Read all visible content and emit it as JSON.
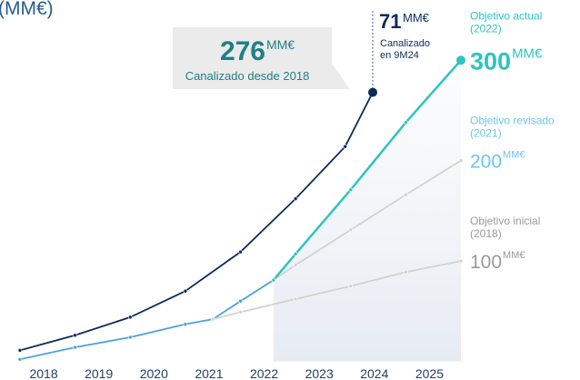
{
  "chart_data": {
    "type": "line",
    "title": "(MM€)",
    "categories": [
      "2018",
      "2019",
      "2020",
      "2021",
      "2022",
      "2023",
      "2024",
      "2025"
    ],
    "xlim": [
      2018,
      2026
    ],
    "ylim": [
      0,
      360
    ],
    "series": [
      {
        "color": "#0b2d5b",
        "x": [
          2018,
          2019,
          2020,
          2021,
          2022,
          2023,
          2023.9,
          2024.4
        ],
        "values": [
          11,
          26,
          44,
          70,
          109,
          162,
          214,
          268
        ]
      },
      {
        "color": "#4aa3df",
        "x": [
          2018,
          2019,
          2020,
          2021,
          2021.5,
          2022,
          2022.6
        ],
        "values": [
          2,
          14,
          24,
          37,
          42,
          60,
          81
        ]
      },
      {
        "color": "#d2d2d2",
        "x": [
          2021.5,
          2022,
          2023,
          2024,
          2025,
          2026
        ],
        "values": [
          42,
          49,
          62,
          75,
          89,
          100
        ]
      },
      {
        "color": "#d2d2d2",
        "x": [
          2022.6,
          2023,
          2024,
          2025,
          2026
        ],
        "values": [
          81,
          96,
          131,
          166,
          200
        ]
      },
      {
        "color": "#2ec4c0",
        "x": [
          2022.6,
          2023,
          2024,
          2025,
          2026
        ],
        "values": [
          81,
          107,
          171,
          238,
          300
        ]
      }
    ],
    "callout": {
      "value": 276,
      "unit": "MM€",
      "text": "Canalizado desde 2018"
    },
    "period_note": {
      "value": 71,
      "unit": "MM€",
      "lines": [
        "Canalizado",
        "en 9M24"
      ]
    },
    "targets": [
      {
        "label": "Objetivo actual",
        "year": "(2022)",
        "value": 300,
        "unit": "MM€",
        "color": "#2ec4c0"
      },
      {
        "label": "Objetivo revisado",
        "year": "(2021)",
        "value": 200,
        "unit": "MM€",
        "color": "#6cc5ec"
      },
      {
        "label": "Objetivo inicial",
        "year": "(2018)",
        "value": 100,
        "unit": "MM€",
        "color": "#9a9a9a"
      }
    ]
  }
}
